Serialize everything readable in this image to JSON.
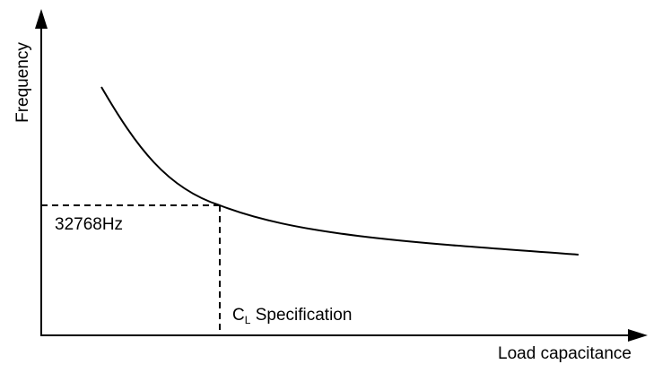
{
  "diagram": {
    "type": "schematic curve",
    "axes": {
      "y_label": "Frequency",
      "x_label": "Load capacitance"
    },
    "curve": {
      "shape": "decreasing, convex"
    },
    "reference": {
      "frequency_label": "32768Hz",
      "capacitance_label_main": "C",
      "capacitance_label_subscript": "L",
      "capacitance_label_rest": " Specification",
      "line_style": "dashed"
    },
    "colors": {
      "ink": "#000000",
      "background": "#ffffff"
    }
  }
}
